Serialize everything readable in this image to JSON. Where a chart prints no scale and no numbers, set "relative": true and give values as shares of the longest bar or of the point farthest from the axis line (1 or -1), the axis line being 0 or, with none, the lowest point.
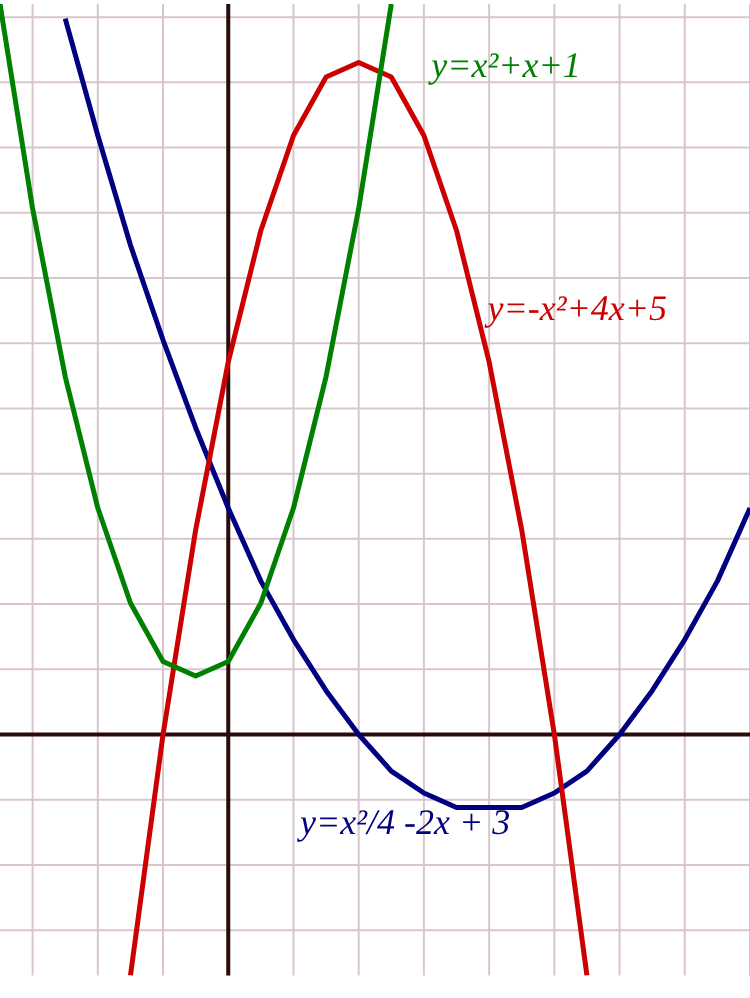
{
  "chart_data": {
    "type": "line",
    "relative": true,
    "grid": true,
    "categories": [
      null,
      null,
      null,
      null,
      null,
      null,
      null,
      null,
      null,
      null,
      null,
      null,
      null,
      null,
      null,
      null,
      null,
      null,
      null,
      null,
      null,
      null,
      null,
      null
    ],
    "series": [
      {
        "color": "#008000",
        "values": [
          1,
          0.72,
          0.49,
          0.31,
          0.18,
          0.1,
          0.08,
          0.1,
          0.18,
          0.31,
          0.49,
          0.72,
          1,
          null,
          null,
          null,
          null,
          null,
          null,
          null,
          null,
          null,
          null,
          null
        ]
      },
      {
        "color": "#cc0000",
        "values": [
          null,
          null,
          null,
          null,
          -0.33,
          0,
          0.28,
          0.51,
          0.69,
          0.82,
          0.9,
          0.92,
          0.9,
          0.82,
          0.69,
          0.51,
          0.28,
          0,
          -0.33,
          null,
          null,
          null,
          null,
          null
        ]
      },
      {
        "color": "#000080",
        "values": [
          null,
          null,
          0.98,
          0.82,
          0.67,
          0.54,
          0.42,
          0.31,
          0.21,
          0.13,
          0.06,
          0,
          -0.05,
          -0.08,
          -0.1,
          -0.1,
          -0.1,
          -0.08,
          -0.05,
          0,
          0.06,
          0.13,
          0.21,
          0.31
        ]
      }
    ],
    "annotations": [
      "y=x²+x+1",
      "y=-x²+4x+5",
      "y=x²/4 -2x + 3"
    ]
  }
}
